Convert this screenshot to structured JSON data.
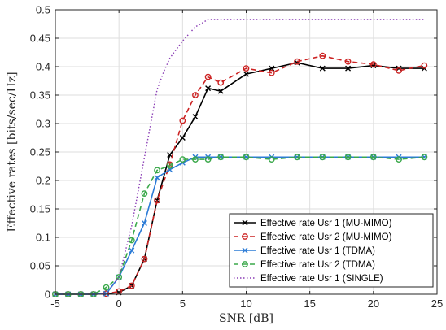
{
  "chart_data": {
    "type": "line",
    "xlabel": "SNR [dB]",
    "ylabel": "Effective rates [bits/sec/Hz]",
    "xlim": [
      -5,
      25
    ],
    "ylim": [
      0,
      0.5
    ],
    "xticks": [
      -5,
      0,
      5,
      10,
      15,
      20,
      25
    ],
    "yticks": [
      0,
      0.05,
      0.1,
      0.15,
      0.2,
      0.25,
      0.3,
      0.35,
      0.4,
      0.45,
      0.5
    ],
    "grid": true,
    "legend_position": "bottom-right",
    "series": [
      {
        "name": "Effective rate Usr 1 (MU-MIMO)",
        "color": "#000000",
        "line_style": "solid",
        "marker": "x",
        "x": [
          -5,
          -4,
          -3,
          -2,
          -1,
          0,
          1,
          2,
          3,
          4,
          5,
          6,
          7,
          8,
          10,
          12,
          14,
          16,
          18,
          20,
          22,
          24
        ],
        "y": [
          0,
          0,
          0,
          0,
          0.001,
          0.003,
          0.015,
          0.062,
          0.165,
          0.245,
          0.275,
          0.312,
          0.362,
          0.357,
          0.387,
          0.397,
          0.407,
          0.397,
          0.397,
          0.402,
          0.397,
          0.397
        ]
      },
      {
        "name": "Effective rate Usr 2 (MU-MIMO)",
        "color": "#cc2222",
        "line_style": "dashed",
        "marker": "o",
        "x": [
          -5,
          -4,
          -3,
          -2,
          -1,
          0,
          1,
          2,
          3,
          4,
          5,
          6,
          7,
          8,
          10,
          12,
          14,
          16,
          18,
          20,
          22,
          24
        ],
        "y": [
          0,
          0,
          0,
          0,
          0.001,
          0.005,
          0.015,
          0.062,
          0.165,
          0.228,
          0.305,
          0.35,
          0.382,
          0.372,
          0.397,
          0.389,
          0.409,
          0.419,
          0.409,
          0.404,
          0.393,
          0.402
        ]
      },
      {
        "name": "Effective rate Usr 1 (TDMA)",
        "color": "#2b7bd6",
        "line_style": "solid",
        "marker": "x",
        "x": [
          -5,
          -4,
          -3,
          -2,
          -1,
          0,
          1,
          2,
          3,
          4,
          5,
          6,
          7,
          8,
          10,
          12,
          14,
          16,
          18,
          20,
          22,
          24
        ],
        "y": [
          0,
          0,
          0,
          0,
          0.001,
          0.03,
          0.077,
          0.125,
          0.205,
          0.219,
          0.231,
          0.241,
          0.241,
          0.241,
          0.241,
          0.241,
          0.241,
          0.241,
          0.241,
          0.241,
          0.241,
          0.241
        ]
      },
      {
        "name": "Effective rate Usr 2 (TDMA)",
        "color": "#3aa84a",
        "line_style": "dashed",
        "marker": "o",
        "x": [
          -5,
          -4,
          -3,
          -2,
          -1,
          0,
          1,
          2,
          3,
          4,
          5,
          6,
          7,
          8,
          10,
          12,
          14,
          16,
          18,
          20,
          22,
          24
        ],
        "y": [
          0,
          0,
          0,
          0,
          0.012,
          0.03,
          0.095,
          0.177,
          0.218,
          0.226,
          0.237,
          0.237,
          0.237,
          0.241,
          0.241,
          0.237,
          0.241,
          0.241,
          0.241,
          0.241,
          0.237,
          0.241
        ]
      },
      {
        "name": "Effective rate Usr 1 (SINGLE)",
        "color": "#8a3db5",
        "line_style": "dotted",
        "marker": "none",
        "x": [
          -5,
          -4,
          -3,
          -2,
          -1,
          0,
          1,
          2,
          3,
          3.5,
          4,
          5,
          6,
          6.5,
          7,
          8,
          10,
          12,
          14,
          16,
          18,
          20,
          22,
          24
        ],
        "y": [
          0,
          0,
          0,
          0,
          0.002,
          0.03,
          0.12,
          0.24,
          0.36,
          0.39,
          0.415,
          0.445,
          0.47,
          0.476,
          0.483,
          0.483,
          0.483,
          0.483,
          0.483,
          0.483,
          0.483,
          0.483,
          0.483,
          0.483
        ]
      }
    ]
  }
}
